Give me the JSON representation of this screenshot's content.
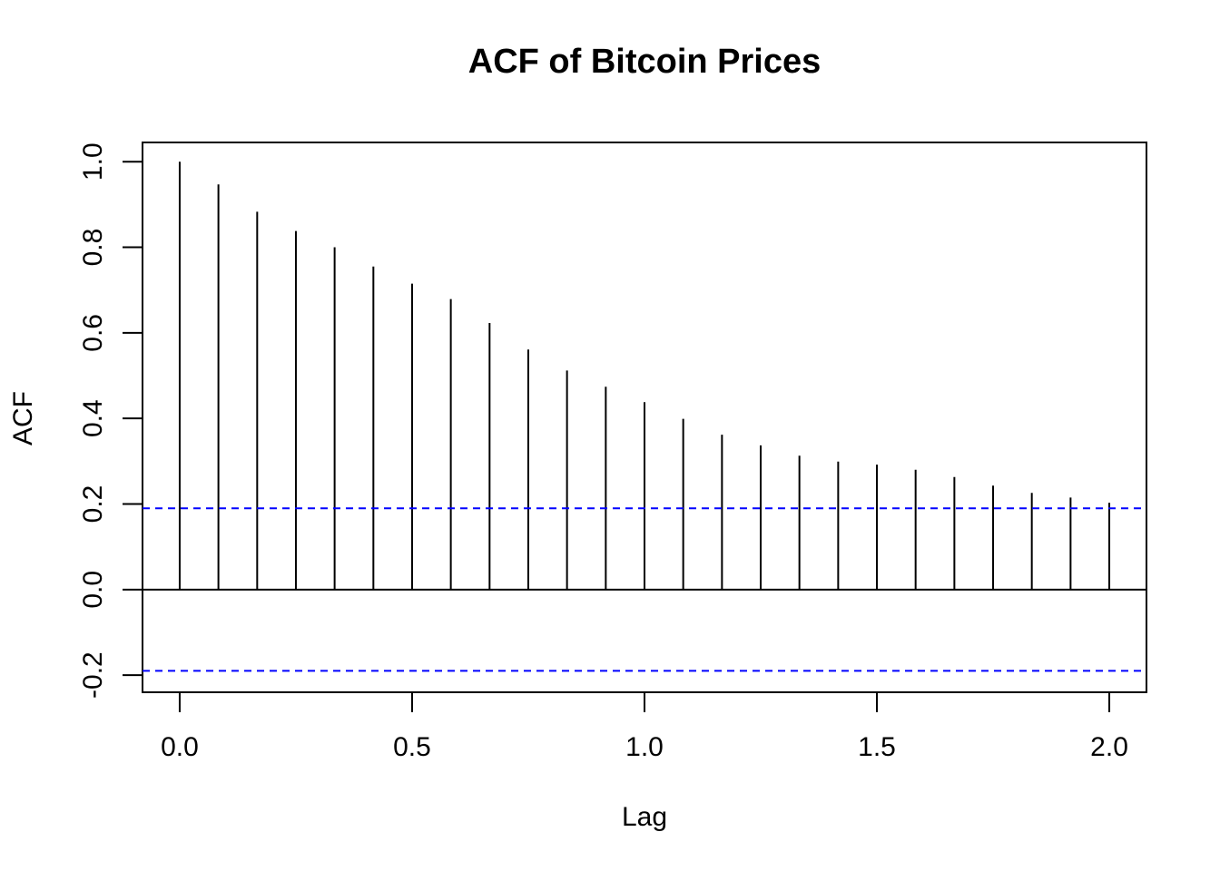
{
  "chart_data": {
    "type": "bar",
    "title": "ACF of Bitcoin Prices",
    "xlabel": "Lag",
    "ylabel": "ACF",
    "xlim": [
      -0.08,
      2.08
    ],
    "ylim": [
      -0.24,
      1.045
    ],
    "x_ticks": [
      "0.0",
      "0.5",
      "1.0",
      "1.5",
      "2.0"
    ],
    "y_ticks": [
      "-0.2",
      "0.0",
      "0.2",
      "0.4",
      "0.6",
      "0.8",
      "1.0"
    ],
    "lags": [
      0.0,
      0.0833,
      0.1667,
      0.25,
      0.3333,
      0.4167,
      0.5,
      0.5833,
      0.6667,
      0.75,
      0.8333,
      0.9167,
      1.0,
      1.0833,
      1.1667,
      1.25,
      1.3333,
      1.4167,
      1.5,
      1.5833,
      1.6667,
      1.75,
      1.8333,
      1.9167,
      2.0
    ],
    "values": [
      1.0,
      0.947,
      0.883,
      0.838,
      0.8,
      0.755,
      0.715,
      0.679,
      0.623,
      0.561,
      0.512,
      0.474,
      0.438,
      0.399,
      0.362,
      0.337,
      0.313,
      0.299,
      0.292,
      0.28,
      0.263,
      0.243,
      0.226,
      0.215,
      0.203
    ],
    "confidence_band": 0.19,
    "colors": {
      "bars": "#000000",
      "confidence": "#0000ff",
      "zero_line": "#000000"
    }
  }
}
